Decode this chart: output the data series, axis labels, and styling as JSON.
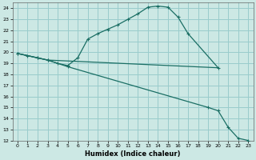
{
  "xlabel": "Humidex (Indice chaleur)",
  "bg_color": "#cce8e4",
  "grid_color": "#99cccc",
  "line_color": "#1a6e64",
  "xlim": [
    -0.5,
    23.5
  ],
  "ylim": [
    12,
    24.5
  ],
  "yticks": [
    12,
    13,
    14,
    15,
    16,
    17,
    18,
    19,
    20,
    21,
    22,
    23,
    24
  ],
  "xticks": [
    0,
    1,
    2,
    3,
    4,
    5,
    6,
    7,
    8,
    9,
    10,
    11,
    12,
    13,
    14,
    15,
    16,
    17,
    18,
    19,
    20,
    21,
    22,
    23
  ],
  "line1_x": [
    0,
    1,
    2,
    3,
    4,
    5,
    6,
    7,
    8,
    9,
    10,
    11,
    12,
    13,
    14,
    15,
    16,
    17,
    20
  ],
  "line1_y": [
    19.9,
    19.7,
    19.5,
    19.3,
    19.0,
    18.8,
    19.5,
    21.2,
    21.7,
    22.1,
    22.5,
    23.0,
    23.5,
    24.1,
    24.2,
    24.1,
    23.2,
    21.7,
    18.6
  ],
  "line2_x": [
    0,
    2,
    3,
    20
  ],
  "line2_y": [
    19.9,
    19.5,
    19.3,
    18.6
  ],
  "line3_x": [
    0,
    2,
    3,
    5,
    19,
    20,
    21,
    22,
    23
  ],
  "line3_y": [
    19.9,
    19.5,
    19.3,
    18.7,
    15.0,
    14.7,
    13.2,
    12.2,
    12.0
  ]
}
